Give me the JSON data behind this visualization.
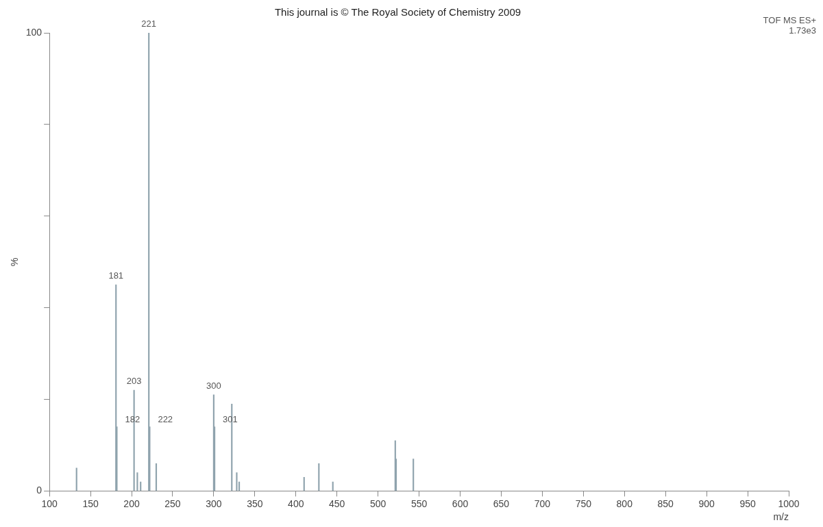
{
  "chart_data": {
    "type": "bar",
    "title": "This journal is © The Royal Society of Chemistry 2009",
    "xlabel": "m/z",
    "ylabel": "%",
    "annotations": [
      "TOF MS ES+",
      "1.73e3",
      {
        "text": "181",
        "x": 181,
        "y": 45
      },
      {
        "text": "182",
        "x": 182,
        "y": 14
      },
      {
        "text": "203",
        "x": 203,
        "y": 22
      },
      {
        "text": "221",
        "x": 221,
        "y": 100
      },
      {
        "text": "222",
        "x": 222,
        "y": 14
      },
      {
        "text": "300",
        "x": 300,
        "y": 21
      },
      {
        "text": "301",
        "x": 301,
        "y": 14
      }
    ],
    "x": [
      133,
      181,
      182,
      203,
      207,
      211,
      221,
      222,
      230,
      300,
      301,
      322,
      328,
      331,
      410,
      428,
      445,
      521,
      522,
      543
    ],
    "values": [
      5,
      45,
      14,
      22,
      4,
      2,
      100,
      14,
      6,
      21,
      14,
      19,
      4,
      2,
      3,
      6,
      2,
      11,
      7,
      7
    ],
    "color": "#8fa3ad",
    "xlim": [
      100,
      1000
    ],
    "xticks": [
      100,
      150,
      200,
      250,
      300,
      350,
      400,
      450,
      500,
      550,
      600,
      650,
      700,
      750,
      800,
      850,
      900,
      950,
      1000
    ],
    "ylim": [
      0,
      100
    ],
    "yticks": [
      0,
      {
        "value": 20,
        "label": null
      },
      {
        "value": 40,
        "label": null
      },
      {
        "value": 60,
        "label": null
      },
      {
        "value": 80,
        "label": null
      },
      100
    ],
    "grid": false,
    "legend": false
  }
}
